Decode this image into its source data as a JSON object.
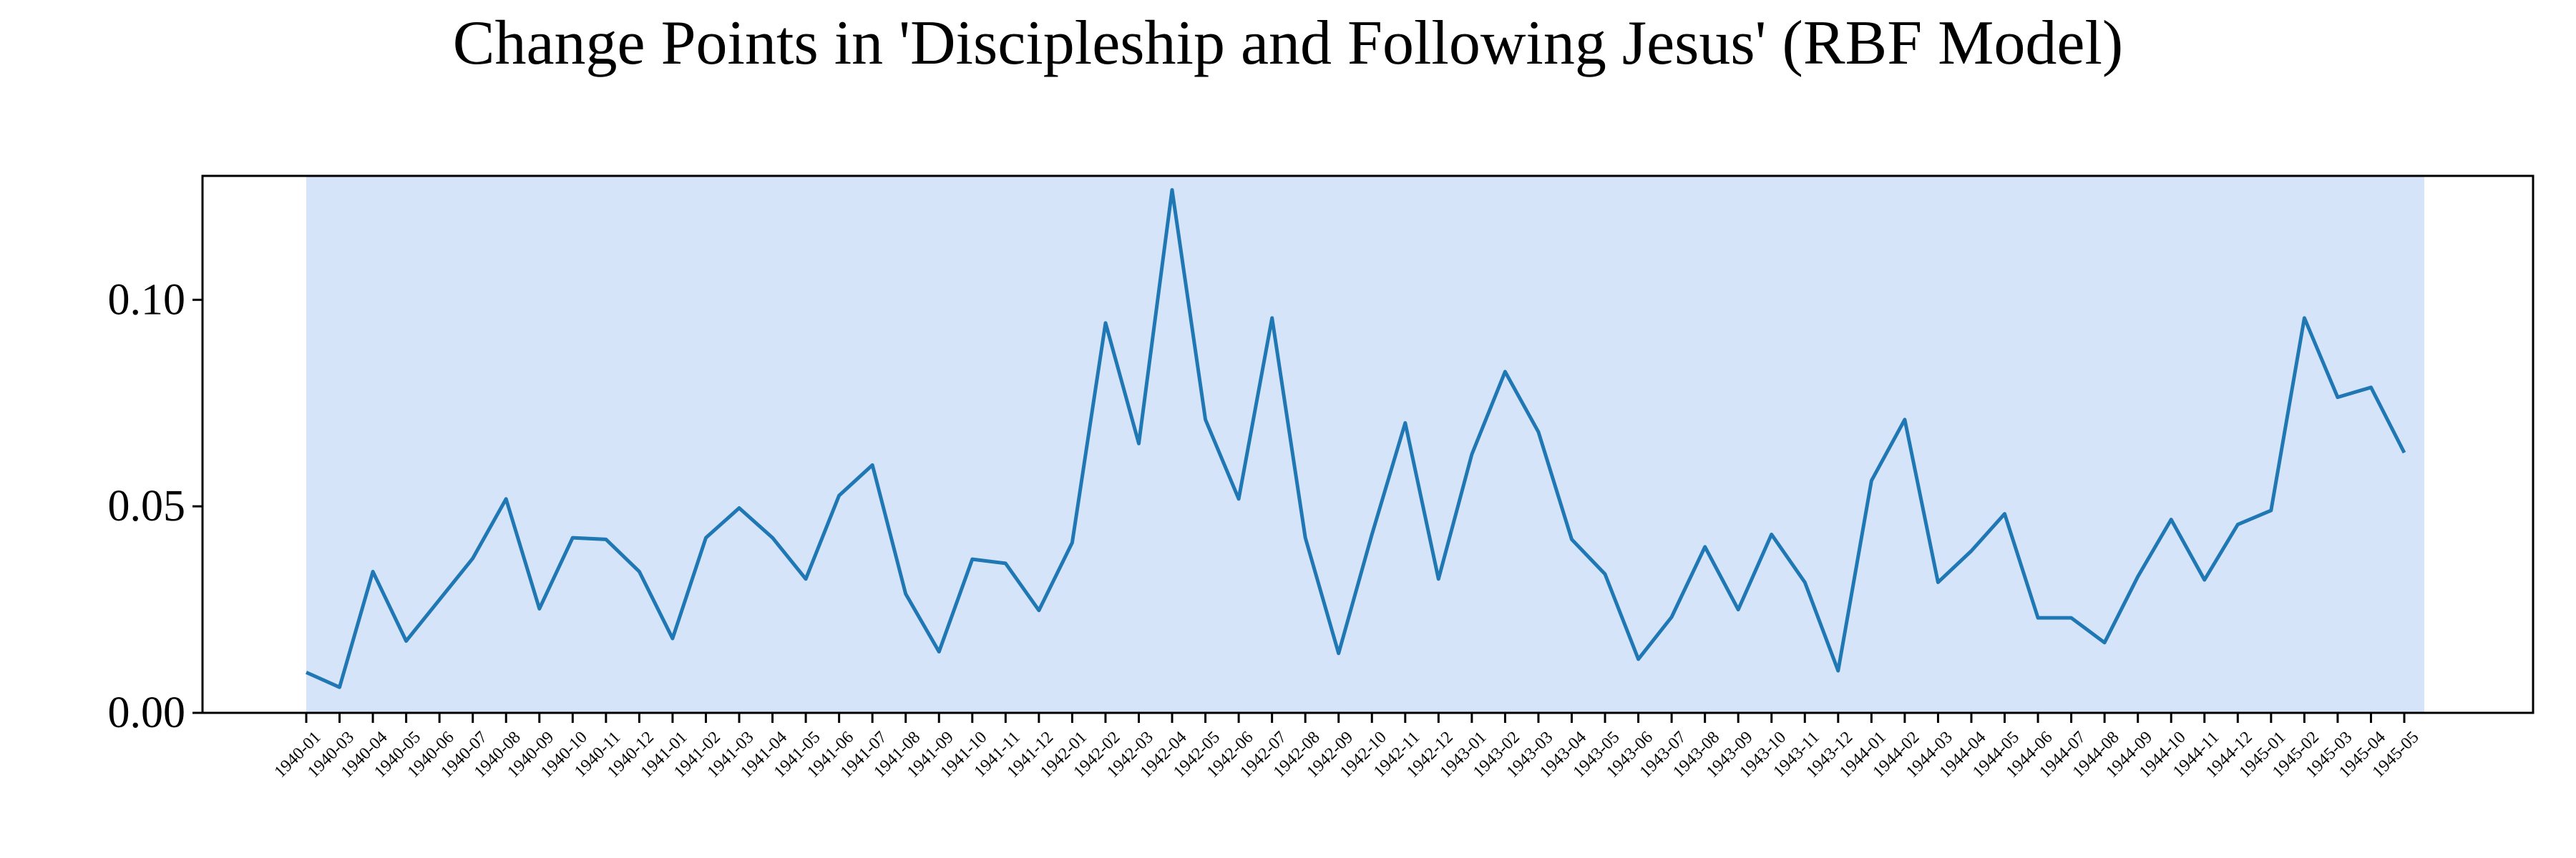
{
  "chart_data": {
    "type": "line",
    "title": "Change Points in 'Discipleship and Following Jesus' (RBF Model)",
    "xlabel": "",
    "ylabel": "",
    "ylim": [
      0.0,
      0.13
    ],
    "yticks": [
      "0.00",
      "0.05",
      "0.10"
    ],
    "grid": false,
    "line_color": "#1f77b4",
    "segment_color": "#d6e4fa",
    "categories": [
      "1940-01",
      "1940-03",
      "1940-04",
      "1940-05",
      "1940-06",
      "1940-07",
      "1940-08",
      "1940-09",
      "1940-10",
      "1940-11",
      "1940-12",
      "1941-01",
      "1941-02",
      "1941-03",
      "1941-04",
      "1941-05",
      "1941-06",
      "1941-07",
      "1941-08",
      "1941-09",
      "1941-10",
      "1941-11",
      "1941-12",
      "1942-01",
      "1942-02",
      "1942-03",
      "1942-04",
      "1942-05",
      "1942-06",
      "1942-07",
      "1942-08",
      "1942-09",
      "1942-10",
      "1942-11",
      "1942-12",
      "1943-01",
      "1943-02",
      "1943-03",
      "1943-04",
      "1943-05",
      "1943-06",
      "1943-07",
      "1943-08",
      "1943-09",
      "1943-10",
      "1943-11",
      "1943-12",
      "1944-01",
      "1944-02",
      "1944-03",
      "1944-04",
      "1944-05",
      "1944-06",
      "1944-07",
      "1944-08",
      "1944-09",
      "1944-10",
      "1944-11",
      "1944-12",
      "1945-01",
      "1945-02",
      "1945-03",
      "1945-04",
      "1945-05"
    ],
    "series": [
      {
        "values": [
          0.0098,
          0.0062,
          0.0342,
          0.0174,
          0.0274,
          0.0374,
          0.0518,
          0.0252,
          0.0424,
          0.042,
          0.0342,
          0.018,
          0.0424,
          0.0496,
          0.0424,
          0.0324,
          0.0526,
          0.06,
          0.0288,
          0.0148,
          0.0372,
          0.0362,
          0.0248,
          0.0412,
          0.0944,
          0.0652,
          0.1266,
          0.071,
          0.0518,
          0.0956,
          0.0424,
          0.0144,
          0.0432,
          0.0702,
          0.0324,
          0.0626,
          0.0826,
          0.068,
          0.042,
          0.0336,
          0.013,
          0.0232,
          0.0402,
          0.025,
          0.0432,
          0.0316,
          0.0102,
          0.0562,
          0.071,
          0.0316,
          0.0392,
          0.0482,
          0.023,
          0.023,
          0.017,
          0.033,
          0.0468,
          0.0322,
          0.0456,
          0.049,
          0.0956,
          0.0764,
          0.0788,
          0.063
        ]
      }
    ]
  }
}
